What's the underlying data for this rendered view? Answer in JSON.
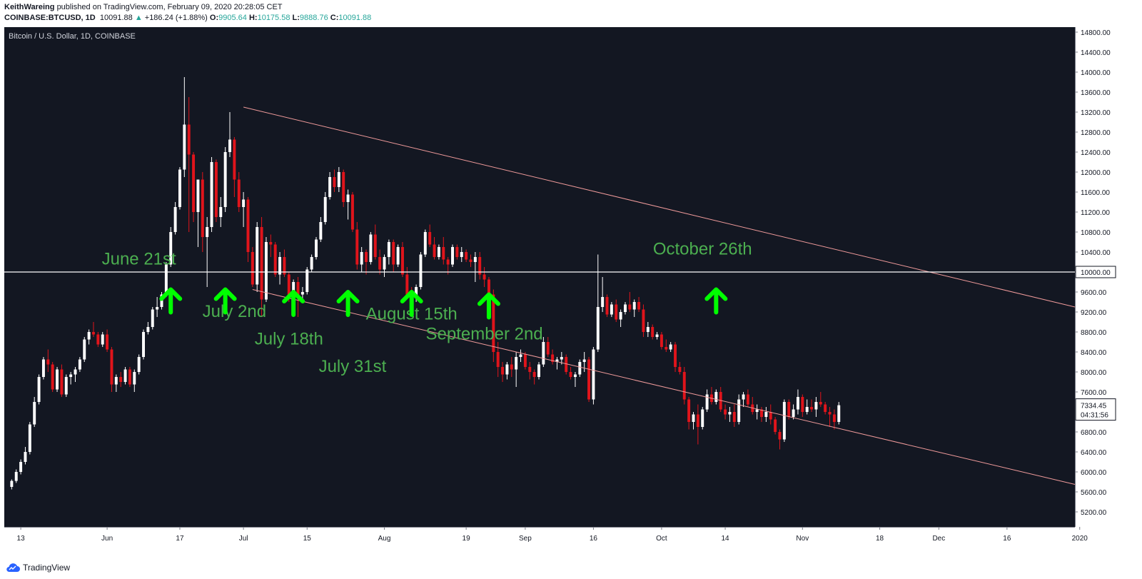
{
  "header": {
    "author": "KeithWareing",
    "published": "published on TradingView.com, February 09, 2020 20:28:05 CET",
    "symbol": "COINBASE:BTCUSD, 1D",
    "last": "10091.88",
    "change": "+186.24 (+1.88%)",
    "o_label": "O:",
    "o": "9905.64",
    "h_label": "H:",
    "h": "10175.58",
    "l_label": "L:",
    "l": "9888.76",
    "c_label": "C:",
    "c": "10091.88"
  },
  "footer": {
    "brand": "TradingView"
  },
  "chart_data": {
    "type": "candlestick",
    "title": "Bitcoin / U.S. Dollar, 1D, COINBASE",
    "ylim": [
      4900,
      14900
    ],
    "y_ticks": [
      5200,
      5600,
      6000,
      6400,
      6800,
      7200,
      7600,
      8000,
      8400,
      8800,
      9200,
      9600,
      10000,
      10400,
      10800,
      11200,
      11600,
      12000,
      12400,
      12800,
      13200,
      13600,
      14000,
      14400,
      14800
    ],
    "x_range_days": [
      0,
      234
    ],
    "x_ticks": [
      {
        "label": "13",
        "day": 3
      },
      {
        "label": "Jun",
        "day": 22
      },
      {
        "label": "17",
        "day": 38
      },
      {
        "label": "Jul",
        "day": 52
      },
      {
        "label": "15",
        "day": 66
      },
      {
        "label": "Aug",
        "day": 83
      },
      {
        "label": "19",
        "day": 101
      },
      {
        "label": "Sep",
        "day": 114
      },
      {
        "label": "16",
        "day": 129
      },
      {
        "label": "Oct",
        "day": 144
      },
      {
        "label": "14",
        "day": 158
      },
      {
        "label": "Nov",
        "day": 175
      },
      {
        "label": "18",
        "day": 192
      },
      {
        "label": "Dec",
        "day": 205
      },
      {
        "label": "16",
        "day": 220
      },
      {
        "label": "2020",
        "day": 236
      }
    ],
    "horizontal_line": {
      "price": 10000,
      "label": "10000.00"
    },
    "trend_lines": [
      {
        "name": "upper",
        "from": [
          52,
          13300
        ],
        "to": [
          240,
          9300
        ]
      },
      {
        "name": "lower",
        "from": [
          54,
          9650
        ],
        "to": [
          240,
          5750
        ]
      }
    ],
    "price_label": {
      "price": 7334.45,
      "text": "7334.45",
      "countdown": "04:31:56"
    },
    "candles": [
      [
        5700,
        5850,
        5650,
        5820
      ],
      [
        5820,
        6050,
        5780,
        6000
      ],
      [
        6000,
        6250,
        5950,
        6200
      ],
      [
        6200,
        6500,
        6150,
        6400
      ],
      [
        6400,
        7000,
        6350,
        6950
      ],
      [
        6950,
        7500,
        6900,
        7400
      ],
      [
        7400,
        7950,
        7350,
        7900
      ],
      [
        7900,
        8300,
        7850,
        8250
      ],
      [
        8250,
        8450,
        8000,
        8150
      ],
      [
        8150,
        8200,
        7600,
        7650
      ],
      [
        7650,
        8100,
        7600,
        8050
      ],
      [
        8050,
        8150,
        7500,
        7550
      ],
      [
        7550,
        7950,
        7500,
        7900
      ],
      [
        7900,
        8000,
        7750,
        7950
      ],
      [
        7950,
        8100,
        7800,
        8050
      ],
      [
        8050,
        8300,
        8000,
        8250
      ],
      [
        8250,
        8700,
        8200,
        8650
      ],
      [
        8650,
        8850,
        8550,
        8800
      ],
      [
        8800,
        9000,
        8700,
        8750
      ],
      [
        8750,
        8800,
        8500,
        8550
      ],
      [
        8550,
        8800,
        8500,
        8750
      ],
      [
        8750,
        8850,
        8400,
        8450
      ],
      [
        8450,
        8500,
        7600,
        7750
      ],
      [
        7750,
        7950,
        7600,
        7900
      ],
      [
        7900,
        8000,
        7700,
        7800
      ],
      [
        7800,
        8100,
        7750,
        8050
      ],
      [
        8050,
        8100,
        7700,
        7750
      ],
      [
        7750,
        8050,
        7600,
        8000
      ],
      [
        8000,
        8350,
        7950,
        8300
      ],
      [
        8300,
        8850,
        8250,
        8800
      ],
      [
        8800,
        9000,
        8750,
        8900
      ],
      [
        8900,
        9300,
        8850,
        9250
      ],
      [
        9250,
        9500,
        9100,
        9300
      ],
      [
        9300,
        9600,
        9250,
        9550
      ],
      [
        9550,
        10200,
        9500,
        10150
      ],
      [
        10150,
        10900,
        10100,
        10800
      ],
      [
        10800,
        11400,
        10750,
        11300
      ],
      [
        11300,
        12100,
        11250,
        12050
      ],
      [
        12050,
        13900,
        11900,
        12950
      ],
      [
        12950,
        13500,
        10800,
        12350
      ],
      [
        12350,
        12400,
        11000,
        11200
      ],
      [
        11200,
        11800,
        10500,
        11850
      ],
      [
        11850,
        12000,
        10400,
        10700
      ],
      [
        10700,
        11100,
        9700,
        10900
      ],
      [
        10900,
        12300,
        10800,
        12200
      ],
      [
        12200,
        12250,
        11000,
        11100
      ],
      [
        11100,
        11500,
        10900,
        11300
      ],
      [
        11300,
        12500,
        11200,
        12400
      ],
      [
        12400,
        13200,
        12300,
        12650
      ],
      [
        12650,
        12700,
        11500,
        11850
      ],
      [
        11850,
        12000,
        11200,
        11300
      ],
      [
        11300,
        11600,
        10900,
        11450
      ],
      [
        11450,
        11500,
        10200,
        10400
      ],
      [
        10400,
        10500,
        9700,
        9750
      ],
      [
        9750,
        11000,
        9600,
        10900
      ],
      [
        10900,
        11100,
        9100,
        9450
      ],
      [
        9450,
        10700,
        9400,
        10600
      ],
      [
        10600,
        10750,
        10300,
        10550
      ],
      [
        10550,
        10600,
        9900,
        9950
      ],
      [
        9950,
        10400,
        9750,
        10300
      ],
      [
        10300,
        10450,
        9900,
        9950
      ],
      [
        9950,
        10000,
        9400,
        9500
      ],
      [
        9500,
        9850,
        9450,
        9800
      ],
      [
        9800,
        9900,
        9100,
        9550
      ],
      [
        9550,
        9700,
        9400,
        9600
      ],
      [
        9600,
        10100,
        9550,
        10050
      ],
      [
        10050,
        10350,
        10000,
        10300
      ],
      [
        10300,
        10700,
        10250,
        10650
      ],
      [
        10650,
        11100,
        10600,
        11000
      ],
      [
        11000,
        11600,
        10950,
        11500
      ],
      [
        11500,
        12000,
        11450,
        11900
      ],
      [
        11900,
        12050,
        11600,
        11700
      ],
      [
        11700,
        12100,
        11600,
        12000
      ],
      [
        12000,
        12050,
        11300,
        11400
      ],
      [
        11400,
        11650,
        11050,
        11550
      ],
      [
        11550,
        11600,
        10800,
        10850
      ],
      [
        10850,
        11000,
        10050,
        10150
      ],
      [
        10150,
        10500,
        10000,
        10400
      ],
      [
        10400,
        10450,
        9950,
        10200
      ],
      [
        10200,
        10800,
        10150,
        10750
      ],
      [
        10750,
        10950,
        10250,
        10300
      ],
      [
        10300,
        10450,
        9950,
        10050
      ],
      [
        10050,
        10350,
        9900,
        10300
      ],
      [
        10300,
        10650,
        10150,
        10600
      ],
      [
        10600,
        10650,
        10000,
        10150
      ],
      [
        10150,
        10550,
        10100,
        10500
      ],
      [
        10500,
        10600,
        9900,
        9950
      ],
      [
        9950,
        10100,
        9500,
        9550
      ],
      [
        9550,
        9700,
        9350,
        9500
      ],
      [
        9500,
        9750,
        9400,
        9700
      ],
      [
        9700,
        10400,
        9650,
        10350
      ],
      [
        10350,
        10850,
        10300,
        10800
      ],
      [
        10800,
        10950,
        10500,
        10550
      ],
      [
        10550,
        10700,
        10250,
        10300
      ],
      [
        10300,
        10550,
        10250,
        10500
      ],
      [
        10500,
        10700,
        10150,
        10250
      ],
      [
        10250,
        10300,
        9950,
        10150
      ],
      [
        10150,
        10550,
        10100,
        10500
      ],
      [
        10500,
        10550,
        10250,
        10300
      ],
      [
        10300,
        10500,
        10200,
        10400
      ],
      [
        10400,
        10450,
        10200,
        10250
      ],
      [
        10250,
        10350,
        10100,
        10200
      ],
      [
        10200,
        10400,
        9800,
        10300
      ],
      [
        10300,
        10400,
        9850,
        9950
      ],
      [
        9950,
        10100,
        9700,
        9850
      ],
      [
        9850,
        9900,
        9200,
        9550
      ],
      [
        9550,
        9650,
        8200,
        8400
      ],
      [
        8400,
        8600,
        7900,
        8100
      ],
      [
        8100,
        8200,
        7800,
        7950
      ],
      [
        7950,
        8200,
        7850,
        8150
      ],
      [
        8150,
        8300,
        7900,
        8050
      ],
      [
        8050,
        8400,
        7700,
        8300
      ],
      [
        8300,
        8450,
        8200,
        8350
      ],
      [
        8350,
        8400,
        8050,
        8100
      ],
      [
        8100,
        8200,
        7850,
        8000
      ],
      [
        8000,
        8050,
        7750,
        7900
      ],
      [
        7900,
        8200,
        7850,
        8150
      ],
      [
        8150,
        8700,
        8100,
        8600
      ],
      [
        8600,
        8700,
        8300,
        8350
      ],
      [
        8350,
        8450,
        8150,
        8200
      ],
      [
        8200,
        8300,
        8050,
        8250
      ],
      [
        8250,
        8400,
        8150,
        8300
      ],
      [
        8300,
        8350,
        7950,
        8000
      ],
      [
        8000,
        8100,
        7850,
        7900
      ],
      [
        7900,
        8000,
        7700,
        7950
      ],
      [
        7950,
        8250,
        7900,
        8200
      ],
      [
        8200,
        8400,
        8000,
        8250
      ],
      [
        8250,
        8300,
        7400,
        7450
      ],
      [
        7450,
        8500,
        7350,
        8450
      ],
      [
        8450,
        10350,
        8400,
        9300
      ],
      [
        9300,
        9900,
        9200,
        9500
      ],
      [
        9500,
        9550,
        9100,
        9150
      ],
      [
        9150,
        9400,
        9100,
        9350
      ],
      [
        9350,
        9450,
        9000,
        9050
      ],
      [
        9050,
        9250,
        8900,
        9200
      ],
      [
        9200,
        9400,
        9150,
        9350
      ],
      [
        9350,
        9600,
        9200,
        9250
      ],
      [
        9250,
        9450,
        9100,
        9400
      ],
      [
        9400,
        9500,
        9200,
        9250
      ],
      [
        9250,
        9350,
        8700,
        8800
      ],
      [
        8800,
        9000,
        8700,
        8900
      ],
      [
        8900,
        8950,
        8650,
        8700
      ],
      [
        8700,
        8800,
        8650,
        8750
      ],
      [
        8750,
        8800,
        8450,
        8500
      ],
      [
        8500,
        8650,
        8400,
        8450
      ],
      [
        8450,
        8600,
        8400,
        8550
      ],
      [
        8550,
        8600,
        8000,
        8100
      ],
      [
        8100,
        8200,
        7950,
        8000
      ],
      [
        8000,
        8100,
        7350,
        7450
      ],
      [
        7450,
        7500,
        6850,
        7000
      ],
      [
        7000,
        7200,
        6850,
        7150
      ],
      [
        7150,
        7350,
        6550,
        6900
      ],
      [
        6900,
        7300,
        6850,
        7250
      ],
      [
        7250,
        7650,
        7200,
        7550
      ],
      [
        7550,
        7700,
        7350,
        7400
      ],
      [
        7400,
        7650,
        7350,
        7600
      ],
      [
        7600,
        7700,
        7200,
        7250
      ],
      [
        7250,
        7350,
        7050,
        7150
      ],
      [
        7150,
        7300,
        7000,
        7200
      ],
      [
        7200,
        7350,
        6900,
        7000
      ],
      [
        7000,
        7550,
        6950,
        7450
      ],
      [
        7450,
        7600,
        7300,
        7550
      ],
      [
        7550,
        7650,
        7300,
        7350
      ],
      [
        7350,
        7500,
        7150,
        7200
      ],
      [
        7200,
        7350,
        7050,
        7250
      ],
      [
        7250,
        7300,
        7000,
        7100
      ],
      [
        7100,
        7300,
        7000,
        7200
      ],
      [
        7200,
        7350,
        6950,
        7050
      ],
      [
        7050,
        7100,
        6750,
        6800
      ],
      [
        6800,
        6850,
        6450,
        6650
      ],
      [
        6650,
        7450,
        6600,
        7400
      ],
      [
        7400,
        7450,
        7050,
        7100
      ],
      [
        7100,
        7350,
        7050,
        7250
      ],
      [
        7250,
        7650,
        7150,
        7500
      ],
      [
        7500,
        7550,
        7100,
        7200
      ],
      [
        7200,
        7450,
        7150,
        7300
      ],
      [
        7300,
        7450,
        7200,
        7250
      ],
      [
        7250,
        7500,
        7100,
        7400
      ],
      [
        7400,
        7600,
        7300,
        7350
      ],
      [
        7350,
        7400,
        7150,
        7200
      ],
      [
        7200,
        7300,
        6900,
        7150
      ],
      [
        7150,
        7250,
        6850,
        7000
      ],
      [
        7000,
        7400,
        6950,
        7334
      ]
    ]
  },
  "annotations": [
    {
      "text": "June 21st",
      "label_day": 29,
      "label_price": 10150,
      "arrow_day": 36,
      "arrow_price": 9650
    },
    {
      "text": "July 2nd",
      "label_day": 50,
      "label_price": 9100,
      "arrow_day": 48,
      "arrow_price": 9650
    },
    {
      "text": "July 18th",
      "label_day": 62,
      "label_price": 8550,
      "arrow_day": 63,
      "arrow_price": 9600
    },
    {
      "text": "July 31st",
      "label_day": 76,
      "label_price": 8000,
      "arrow_day": 75,
      "arrow_price": 9600
    },
    {
      "text": "August 15th",
      "label_day": 89,
      "label_price": 9050,
      "arrow_day": 89,
      "arrow_price": 9600
    },
    {
      "text": "September 2nd",
      "label_day": 105,
      "label_price": 8650,
      "arrow_day": 106,
      "arrow_price": 9550
    },
    {
      "text": "October 26th",
      "label_day": 153,
      "label_price": 10350,
      "arrow_day": 156,
      "arrow_price": 9650
    }
  ],
  "colors": {
    "background": "#131722",
    "up": "#ffffff",
    "down": "#e0141b",
    "trend_line": "#ef9a9a",
    "horizontal_line": "#ffffff",
    "annotation_text": "#4caf50",
    "arrow": "#00ff00"
  }
}
